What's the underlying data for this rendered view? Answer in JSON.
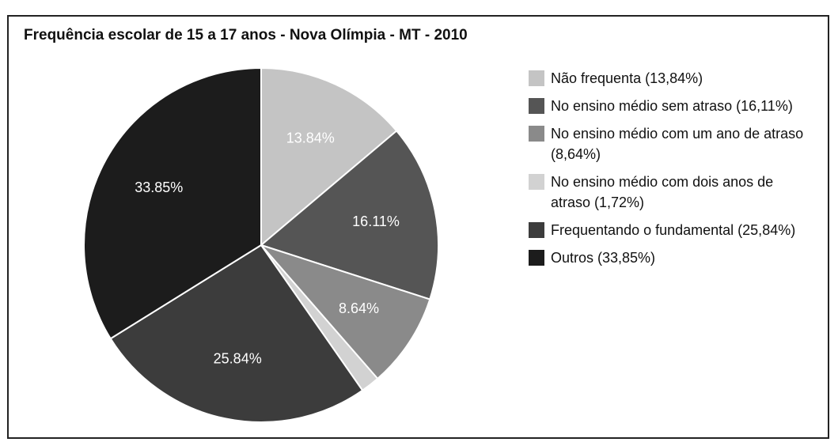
{
  "chart_data": {
    "type": "pie",
    "title": "Frequência escolar de 15 a 17 anos - Nova Olímpia - MT - 2010",
    "series": [
      {
        "name": "Não frequenta (13,84%)",
        "color": "#c4c4c4",
        "values": [
          13.84
        ],
        "value_labels": [
          "13.84%"
        ]
      },
      {
        "name": "No ensino médio sem atraso (16,11%)",
        "color": "#555555",
        "values": [
          16.11
        ],
        "value_labels": [
          "16.11%"
        ]
      },
      {
        "name": "No ensino médio com um ano de atraso (8,64%)",
        "color": "#8a8a8a",
        "values": [
          8.64
        ],
        "value_labels": [
          "8.64%"
        ]
      },
      {
        "name": "No ensino médio com dois anos de atraso (1,72%)",
        "color": "#d2d2d2",
        "values": [
          1.72
        ],
        "value_labels": [
          null
        ]
      },
      {
        "name": "Frequentando o fundamental (25,84%)",
        "color": "#3c3c3c",
        "values": [
          25.84
        ],
        "value_labels": [
          "25.84%"
        ]
      },
      {
        "name": "Outros (33,85%)",
        "color": "#1c1c1c",
        "values": [
          33.85
        ],
        "value_labels": [
          "33.85%"
        ]
      }
    ]
  }
}
